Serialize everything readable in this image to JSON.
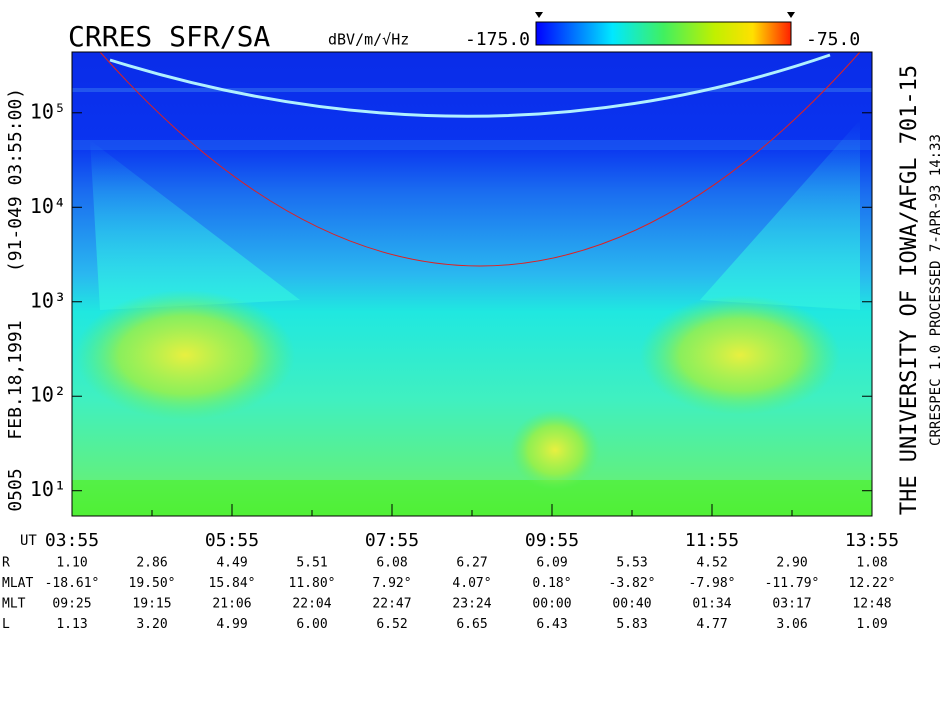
{
  "chart_data": {
    "type": "spectrogram",
    "title": "CRRES SFR/SA",
    "colorbar": {
      "label": "dBV/m/√Hz",
      "min": {
        "value": -175,
        "label": "-175.0"
      },
      "max": {
        "value": -75,
        "label": "-75.0"
      }
    },
    "left_captions": [
      "0505",
      "FEB.18,1991",
      "(91-049 03:55:00)"
    ],
    "right_captions": [
      "THE UNIVERSITY OF IOWA/AFGL 701-15",
      "CRRESPEC 1.0   PROCESSED   7-APR-93   14:33"
    ],
    "x_label": "UT",
    "x": [
      "03:55",
      null,
      "05:55",
      null,
      "07:55",
      null,
      "09:55",
      null,
      "11:55",
      null,
      "13:55"
    ],
    "log_y": true,
    "ylim": [
      5.4,
      440000
    ],
    "yticks": [
      {
        "value": 10,
        "label": "10¹"
      },
      {
        "value": 100,
        "label": "10²"
      },
      {
        "value": 1000,
        "label": "10³"
      },
      {
        "value": 10000,
        "label": "10⁴"
      },
      {
        "value": 100000,
        "label": "10⁵"
      }
    ],
    "ephemeris": [
      {
        "label": "R",
        "values": [
          "1.10",
          "2.86",
          "4.49",
          "5.51",
          "6.08",
          "6.27",
          "6.09",
          "5.53",
          "4.52",
          "2.90",
          "1.08"
        ]
      },
      {
        "label": "MLAT",
        "values": [
          "-18.61°",
          "19.50°",
          "15.84°",
          "11.80°",
          "7.92°",
          "4.07°",
          "0.18°",
          "-3.82°",
          "-7.98°",
          "-11.79°",
          "12.22°"
        ]
      },
      {
        "label": "MLT",
        "values": [
          "09:25",
          "19:15",
          "21:06",
          "22:04",
          "22:47",
          "23:24",
          "00:00",
          "00:40",
          "01:34",
          "03:17",
          "12:48"
        ]
      },
      {
        "label": "L",
        "values": [
          "1.13",
          "3.20",
          "4.99",
          "6.00",
          "6.52",
          "6.65",
          "6.43",
          "5.83",
          "4.77",
          "3.06",
          "1.09"
        ]
      }
    ]
  }
}
